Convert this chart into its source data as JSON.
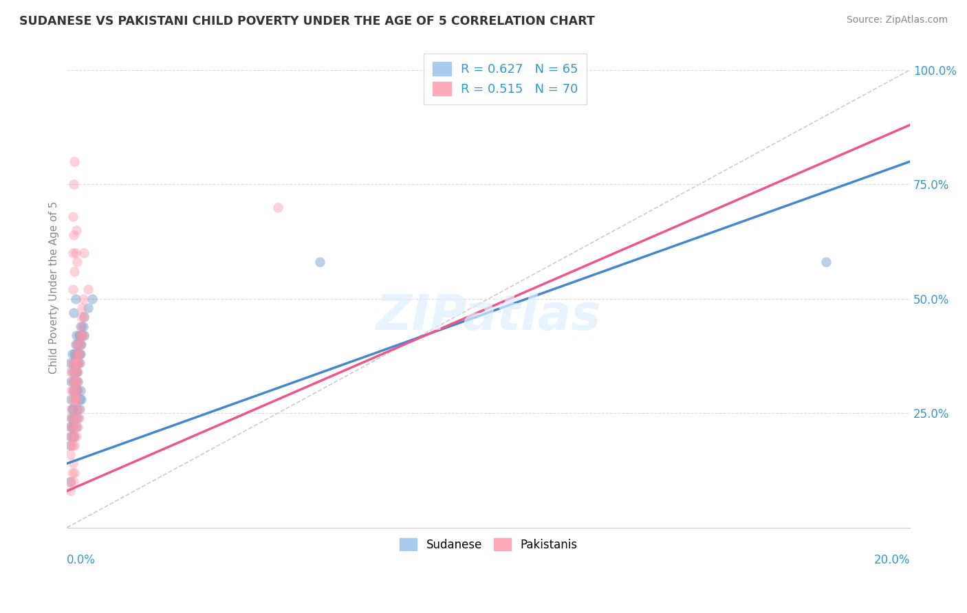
{
  "title": "SUDANESE VS PAKISTANI CHILD POVERTY UNDER THE AGE OF 5 CORRELATION CHART",
  "source": "Source: ZipAtlas.com",
  "ylabel": "Child Poverty Under the Age of 5",
  "ytick_vals": [
    0.0,
    0.25,
    0.5,
    0.75,
    1.0
  ],
  "ytick_labels": [
    "",
    "25.0%",
    "50.0%",
    "75.0%",
    "100.0%"
  ],
  "sudanese_color": "#6699cc",
  "pakistani_color": "#ff99aa",
  "sudanese_line_color": "#4488cc",
  "pakistani_line_color": "#ee5588",
  "legend_patch_blue": "#aaccee",
  "legend_patch_pink": "#ffaabb",
  "watermark": "ZIPatlas",
  "xmin": 0.0,
  "xmax": 0.2,
  "ymin": 0.0,
  "ymax": 1.05,
  "blue_line": {
    "x0": 0.0,
    "y0": 0.14,
    "x1": 0.2,
    "y1": 0.8
  },
  "pink_line": {
    "x0": 0.0,
    "y0": 0.08,
    "x1": 0.2,
    "y1": 0.88
  },
  "ref_line": {
    "x0": 0.0,
    "y0": 0.0,
    "x1": 0.2,
    "y1": 1.0
  },
  "sudanese_points": [
    [
      0.0008,
      0.36
    ],
    [
      0.001,
      0.32
    ],
    [
      0.001,
      0.28
    ],
    [
      0.0012,
      0.38
    ],
    [
      0.0013,
      0.34
    ],
    [
      0.0014,
      0.3
    ],
    [
      0.0014,
      0.26
    ],
    [
      0.0016,
      0.36
    ],
    [
      0.0016,
      0.32
    ],
    [
      0.0018,
      0.38
    ],
    [
      0.0018,
      0.34
    ],
    [
      0.0018,
      0.3
    ],
    [
      0.002,
      0.4
    ],
    [
      0.002,
      0.36
    ],
    [
      0.002,
      0.32
    ],
    [
      0.002,
      0.28
    ],
    [
      0.0022,
      0.42
    ],
    [
      0.0022,
      0.38
    ],
    [
      0.0022,
      0.34
    ],
    [
      0.0022,
      0.3
    ],
    [
      0.0024,
      0.38
    ],
    [
      0.0024,
      0.34
    ],
    [
      0.0024,
      0.3
    ],
    [
      0.0026,
      0.4
    ],
    [
      0.0026,
      0.36
    ],
    [
      0.0026,
      0.32
    ],
    [
      0.0028,
      0.42
    ],
    [
      0.0028,
      0.38
    ],
    [
      0.003,
      0.4
    ],
    [
      0.003,
      0.36
    ],
    [
      0.0032,
      0.42
    ],
    [
      0.0032,
      0.38
    ],
    [
      0.0034,
      0.44
    ],
    [
      0.0034,
      0.4
    ],
    [
      0.0036,
      0.42
    ],
    [
      0.0038,
      0.44
    ],
    [
      0.004,
      0.46
    ],
    [
      0.004,
      0.42
    ],
    [
      0.005,
      0.48
    ],
    [
      0.006,
      0.5
    ],
    [
      0.0008,
      0.22
    ],
    [
      0.0008,
      0.18
    ],
    [
      0.001,
      0.24
    ],
    [
      0.001,
      0.2
    ],
    [
      0.0012,
      0.26
    ],
    [
      0.0012,
      0.22
    ],
    [
      0.0014,
      0.24
    ],
    [
      0.0014,
      0.2
    ],
    [
      0.0016,
      0.22
    ],
    [
      0.0018,
      0.2
    ],
    [
      0.002,
      0.24
    ],
    [
      0.0022,
      0.22
    ],
    [
      0.0024,
      0.26
    ],
    [
      0.0026,
      0.24
    ],
    [
      0.0028,
      0.26
    ],
    [
      0.003,
      0.28
    ],
    [
      0.0032,
      0.3
    ],
    [
      0.0034,
      0.28
    ],
    [
      0.0015,
      0.47
    ],
    [
      0.002,
      0.5
    ],
    [
      0.0008,
      0.1
    ],
    [
      0.06,
      0.58
    ],
    [
      0.18,
      0.58
    ]
  ],
  "pakistani_points": [
    [
      0.0008,
      0.34
    ],
    [
      0.001,
      0.3
    ],
    [
      0.001,
      0.26
    ],
    [
      0.0012,
      0.36
    ],
    [
      0.0013,
      0.32
    ],
    [
      0.0014,
      0.28
    ],
    [
      0.0014,
      0.24
    ],
    [
      0.0016,
      0.34
    ],
    [
      0.0016,
      0.3
    ],
    [
      0.0018,
      0.36
    ],
    [
      0.0018,
      0.32
    ],
    [
      0.0018,
      0.28
    ],
    [
      0.002,
      0.38
    ],
    [
      0.002,
      0.34
    ],
    [
      0.002,
      0.3
    ],
    [
      0.002,
      0.26
    ],
    [
      0.0022,
      0.4
    ],
    [
      0.0022,
      0.36
    ],
    [
      0.0022,
      0.32
    ],
    [
      0.0022,
      0.28
    ],
    [
      0.0024,
      0.36
    ],
    [
      0.0024,
      0.32
    ],
    [
      0.0024,
      0.28
    ],
    [
      0.0026,
      0.38
    ],
    [
      0.0026,
      0.34
    ],
    [
      0.0026,
      0.3
    ],
    [
      0.0028,
      0.4
    ],
    [
      0.0028,
      0.36
    ],
    [
      0.003,
      0.42
    ],
    [
      0.003,
      0.38
    ],
    [
      0.0032,
      0.44
    ],
    [
      0.0032,
      0.4
    ],
    [
      0.0034,
      0.46
    ],
    [
      0.0034,
      0.42
    ],
    [
      0.0036,
      0.48
    ],
    [
      0.0038,
      0.5
    ],
    [
      0.004,
      0.46
    ],
    [
      0.004,
      0.42
    ],
    [
      0.005,
      0.52
    ],
    [
      0.0008,
      0.2
    ],
    [
      0.0008,
      0.16
    ],
    [
      0.001,
      0.22
    ],
    [
      0.001,
      0.18
    ],
    [
      0.0012,
      0.24
    ],
    [
      0.0012,
      0.2
    ],
    [
      0.0014,
      0.22
    ],
    [
      0.0014,
      0.18
    ],
    [
      0.0016,
      0.2
    ],
    [
      0.0018,
      0.18
    ],
    [
      0.002,
      0.22
    ],
    [
      0.0022,
      0.2
    ],
    [
      0.0024,
      0.24
    ],
    [
      0.0026,
      0.22
    ],
    [
      0.0028,
      0.24
    ],
    [
      0.003,
      0.26
    ],
    [
      0.0014,
      0.6
    ],
    [
      0.0016,
      0.64
    ],
    [
      0.0018,
      0.56
    ],
    [
      0.002,
      0.6
    ],
    [
      0.0022,
      0.65
    ],
    [
      0.0016,
      0.75
    ],
    [
      0.0018,
      0.8
    ],
    [
      0.0014,
      0.68
    ],
    [
      0.0024,
      0.58
    ],
    [
      0.0014,
      0.52
    ],
    [
      0.004,
      0.6
    ],
    [
      0.05,
      0.7
    ],
    [
      0.0008,
      0.08
    ],
    [
      0.001,
      0.1
    ],
    [
      0.0012,
      0.12
    ],
    [
      0.0014,
      0.14
    ],
    [
      0.0016,
      0.1
    ],
    [
      0.0018,
      0.12
    ]
  ]
}
